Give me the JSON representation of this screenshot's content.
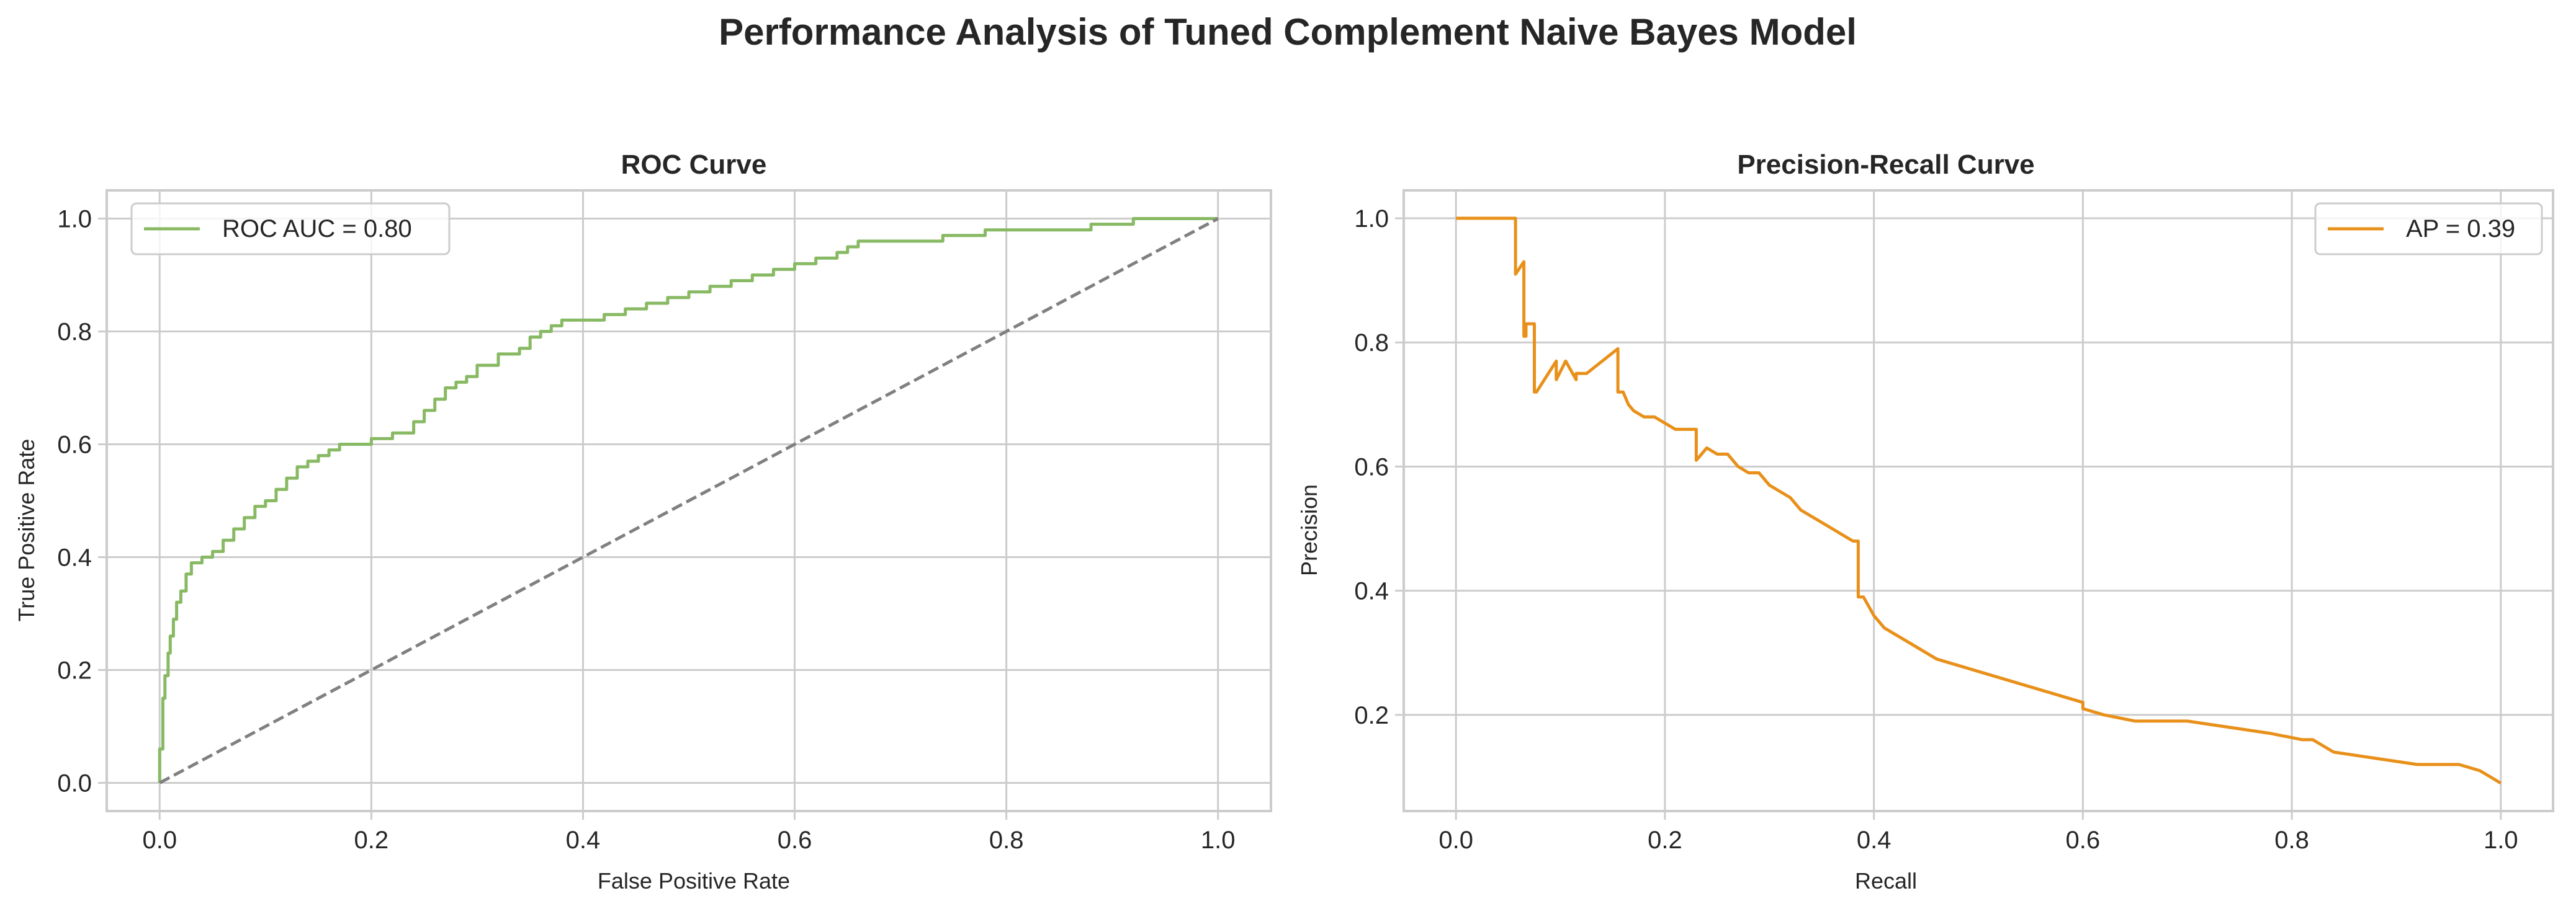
{
  "figure": {
    "title": "Performance Analysis of Tuned Complement Naive Bayes Model"
  },
  "colors": {
    "roc": "#88b963",
    "pr": "#e8901a",
    "diagonal": "#808080",
    "grid": "#cccccc",
    "spine": "#cccccc",
    "text": "#262626"
  },
  "chart_data": [
    {
      "type": "line",
      "title": "ROC Curve",
      "xlabel": "False Positive Rate",
      "ylabel": "True Positive Rate",
      "xlim": [
        -0.05,
        1.05
      ],
      "ylim": [
        -0.05,
        1.05
      ],
      "xticks": [
        0.0,
        0.2,
        0.4,
        0.6,
        0.8,
        1.0
      ],
      "yticks": [
        0.0,
        0.2,
        0.4,
        0.6,
        0.8,
        1.0
      ],
      "grid": true,
      "legend": "upper-left",
      "series": [
        {
          "name": "ROC AUC = 0.80",
          "color": "#88b963",
          "style": "solid",
          "step": true,
          "x": [
            0.0,
            0.0,
            0.003,
            0.005,
            0.008,
            0.01,
            0.013,
            0.016,
            0.02,
            0.025,
            0.03,
            0.035,
            0.04,
            0.05,
            0.06,
            0.07,
            0.08,
            0.09,
            0.1,
            0.11,
            0.12,
            0.13,
            0.14,
            0.15,
            0.16,
            0.17,
            0.18,
            0.2,
            0.22,
            0.24,
            0.25,
            0.26,
            0.27,
            0.28,
            0.29,
            0.3,
            0.32,
            0.34,
            0.35,
            0.36,
            0.37,
            0.38,
            0.4,
            0.42,
            0.44,
            0.46,
            0.48,
            0.5,
            0.52,
            0.54,
            0.56,
            0.58,
            0.6,
            0.62,
            0.64,
            0.65,
            0.66,
            0.7,
            0.74,
            0.78,
            0.8,
            0.84,
            0.88,
            0.9,
            0.92,
            0.95,
            1.0
          ],
          "y": [
            0.0,
            0.06,
            0.15,
            0.19,
            0.23,
            0.26,
            0.29,
            0.32,
            0.34,
            0.37,
            0.39,
            0.39,
            0.4,
            0.41,
            0.43,
            0.45,
            0.47,
            0.49,
            0.5,
            0.52,
            0.54,
            0.56,
            0.57,
            0.58,
            0.59,
            0.6,
            0.6,
            0.61,
            0.62,
            0.64,
            0.66,
            0.68,
            0.7,
            0.71,
            0.72,
            0.74,
            0.76,
            0.77,
            0.79,
            0.8,
            0.81,
            0.82,
            0.82,
            0.83,
            0.84,
            0.85,
            0.86,
            0.87,
            0.88,
            0.89,
            0.9,
            0.91,
            0.92,
            0.93,
            0.94,
            0.95,
            0.96,
            0.96,
            0.97,
            0.98,
            0.98,
            0.98,
            0.99,
            0.99,
            1.0,
            1.0,
            1.0
          ]
        },
        {
          "name": "",
          "color": "#808080",
          "style": "dashed",
          "step": false,
          "x": [
            0.0,
            1.0
          ],
          "y": [
            0.0,
            1.0
          ]
        }
      ]
    },
    {
      "type": "line",
      "title": "Precision-Recall Curve",
      "xlabel": "Recall",
      "ylabel": "Precision",
      "xlim": [
        -0.05,
        1.05
      ],
      "ylim": [
        0.045,
        1.045
      ],
      "xticks": [
        0.0,
        0.2,
        0.4,
        0.6,
        0.8,
        1.0
      ],
      "yticks": [
        0.2,
        0.4,
        0.6,
        0.8,
        1.0
      ],
      "grid": true,
      "legend": "upper-right",
      "series": [
        {
          "name": "AP = 0.39",
          "color": "#e8901a",
          "style": "solid",
          "step": false,
          "x": [
            0.0,
            0.057,
            0.057,
            0.065,
            0.065,
            0.067,
            0.067,
            0.075,
            0.075,
            0.077,
            0.096,
            0.096,
            0.105,
            0.115,
            0.115,
            0.125,
            0.155,
            0.155,
            0.16,
            0.165,
            0.17,
            0.18,
            0.19,
            0.2,
            0.21,
            0.22,
            0.23,
            0.23,
            0.24,
            0.25,
            0.26,
            0.27,
            0.28,
            0.29,
            0.3,
            0.31,
            0.32,
            0.33,
            0.34,
            0.35,
            0.36,
            0.37,
            0.38,
            0.385,
            0.385,
            0.39,
            0.4,
            0.41,
            0.42,
            0.44,
            0.46,
            0.48,
            0.5,
            0.52,
            0.54,
            0.56,
            0.58,
            0.6,
            0.6,
            0.62,
            0.65,
            0.7,
            0.74,
            0.78,
            0.81,
            0.82,
            0.84,
            0.88,
            0.92,
            0.96,
            0.98,
            0.99,
            1.0
          ],
          "y": [
            1.0,
            1.0,
            0.91,
            0.93,
            0.81,
            0.81,
            0.83,
            0.83,
            0.72,
            0.72,
            0.77,
            0.74,
            0.77,
            0.74,
            0.75,
            0.75,
            0.79,
            0.72,
            0.72,
            0.7,
            0.69,
            0.68,
            0.68,
            0.67,
            0.66,
            0.66,
            0.66,
            0.61,
            0.63,
            0.62,
            0.62,
            0.6,
            0.59,
            0.59,
            0.57,
            0.56,
            0.55,
            0.53,
            0.52,
            0.51,
            0.5,
            0.49,
            0.48,
            0.48,
            0.39,
            0.39,
            0.36,
            0.34,
            0.33,
            0.31,
            0.29,
            0.28,
            0.27,
            0.26,
            0.25,
            0.24,
            0.23,
            0.22,
            0.21,
            0.2,
            0.19,
            0.19,
            0.18,
            0.17,
            0.16,
            0.16,
            0.14,
            0.13,
            0.12,
            0.12,
            0.11,
            0.1,
            0.09
          ]
        }
      ]
    }
  ]
}
